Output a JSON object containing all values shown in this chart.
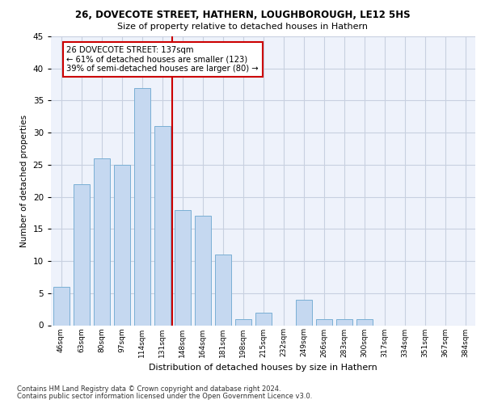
{
  "title1": "26, DOVECOTE STREET, HATHERN, LOUGHBOROUGH, LE12 5HS",
  "title2": "Size of property relative to detached houses in Hathern",
  "xlabel": "Distribution of detached houses by size in Hathern",
  "ylabel": "Number of detached properties",
  "categories": [
    "46sqm",
    "63sqm",
    "80sqm",
    "97sqm",
    "114sqm",
    "131sqm",
    "148sqm",
    "164sqm",
    "181sqm",
    "198sqm",
    "215sqm",
    "232sqm",
    "249sqm",
    "266sqm",
    "283sqm",
    "300sqm",
    "317sqm",
    "334sqm",
    "351sqm",
    "367sqm",
    "384sqm"
  ],
  "values": [
    6,
    22,
    26,
    25,
    37,
    31,
    18,
    17,
    11,
    1,
    2,
    0,
    4,
    1,
    1,
    1,
    0,
    0,
    0,
    0,
    0
  ],
  "bar_color": "#c5d8f0",
  "bar_edge_color": "#7aafd4",
  "vline_index": 5,
  "marker_label": "26 DOVECOTE STREET: 137sqm",
  "annotation_line1": "← 61% of detached houses are smaller (123)",
  "annotation_line2": "39% of semi-detached houses are larger (80) →",
  "annotation_box_facecolor": "#ffffff",
  "annotation_box_edgecolor": "#cc0000",
  "vline_color": "#cc0000",
  "ylim": [
    0,
    45
  ],
  "yticks": [
    0,
    5,
    10,
    15,
    20,
    25,
    30,
    35,
    40,
    45
  ],
  "footnote1": "Contains HM Land Registry data © Crown copyright and database right 2024.",
  "footnote2": "Contains public sector information licensed under the Open Government Licence v3.0.",
  "bg_color": "#eef2fb",
  "grid_color": "#c8d0e0",
  "title1_fontsize": 8.5,
  "title2_fontsize": 8.0,
  "xlabel_fontsize": 8.0,
  "ylabel_fontsize": 7.5,
  "xtick_fontsize": 6.5,
  "ytick_fontsize": 7.5,
  "footnote_fontsize": 6.0,
  "annot_fontsize": 7.2
}
